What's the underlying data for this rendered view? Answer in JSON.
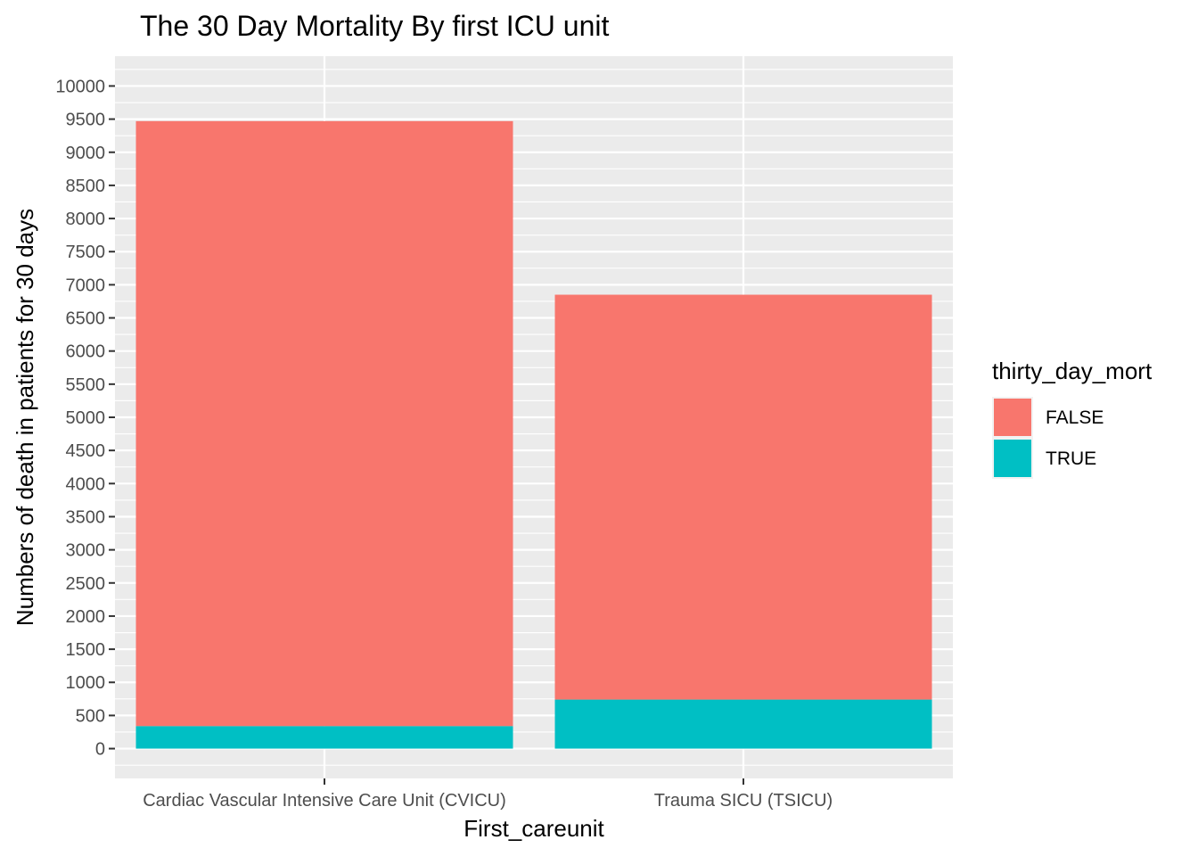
{
  "chart_data": {
    "type": "bar",
    "stacked": true,
    "title": "The 30 Day Mortality By first ICU unit",
    "xlabel": "First_careunit",
    "ylabel": "Numbers of death in patients for 30 days",
    "categories": [
      "Cardiac Vascular Intensive Care Unit (CVICU)",
      "Trauma SICU (TSICU)"
    ],
    "series": [
      {
        "name": "FALSE",
        "color": "#F8766D",
        "values": [
          9130,
          6110
        ]
      },
      {
        "name": "TRUE",
        "color": "#00BFC4",
        "values": [
          340,
          740
        ]
      }
    ],
    "ylim": [
      -450,
      10450
    ],
    "yticks": [
      0,
      500,
      1000,
      1500,
      2000,
      2500,
      3000,
      3500,
      4000,
      4500,
      5000,
      5500,
      6000,
      6500,
      7000,
      7500,
      8000,
      8500,
      9000,
      9500,
      10000
    ],
    "grid": true,
    "legend": {
      "title": "thirty_day_mort",
      "position": "right",
      "entries": [
        "FALSE",
        "TRUE"
      ]
    },
    "panel_background": "#EBEBEB"
  }
}
